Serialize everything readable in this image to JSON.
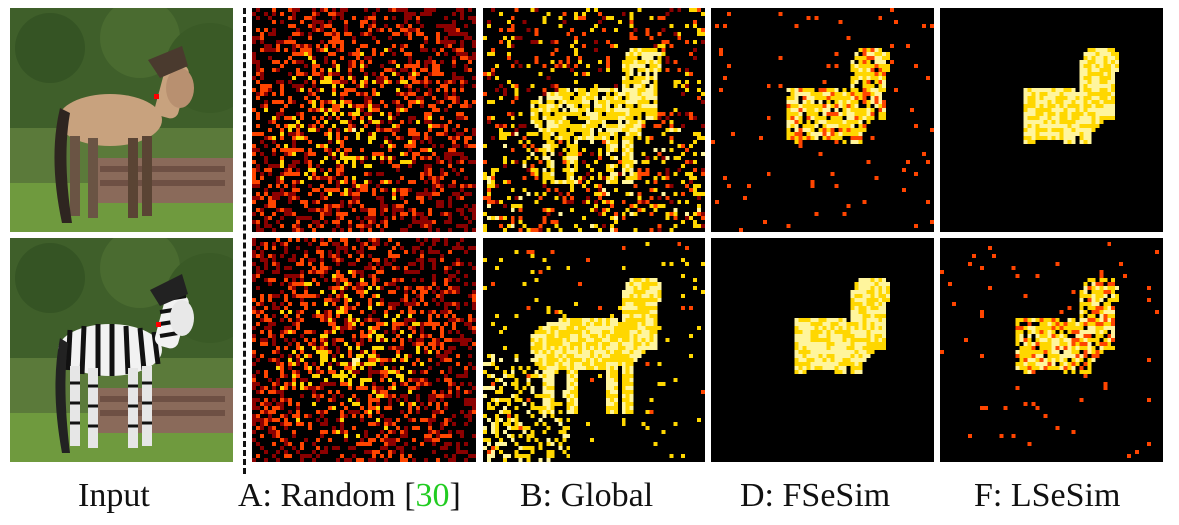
{
  "figure": {
    "captions": {
      "input": "Input",
      "random_prefix": "A: Random [",
      "random_cite": "30",
      "random_suffix": "]",
      "global": "B: Global",
      "fsesim": "D: FSeSim",
      "lsesim": "F: LSeSim"
    },
    "rows": [
      {
        "subject": "horse"
      },
      {
        "subject": "zebra"
      }
    ],
    "colors": {
      "heat_background": "#000000",
      "heat_low": "#8b0000",
      "heat_mid": "#ff4500",
      "heat_high": "#ffd700",
      "heat_peak": "#fff59d",
      "query_point": "#ff0000",
      "citation": "#22cc22"
    }
  }
}
